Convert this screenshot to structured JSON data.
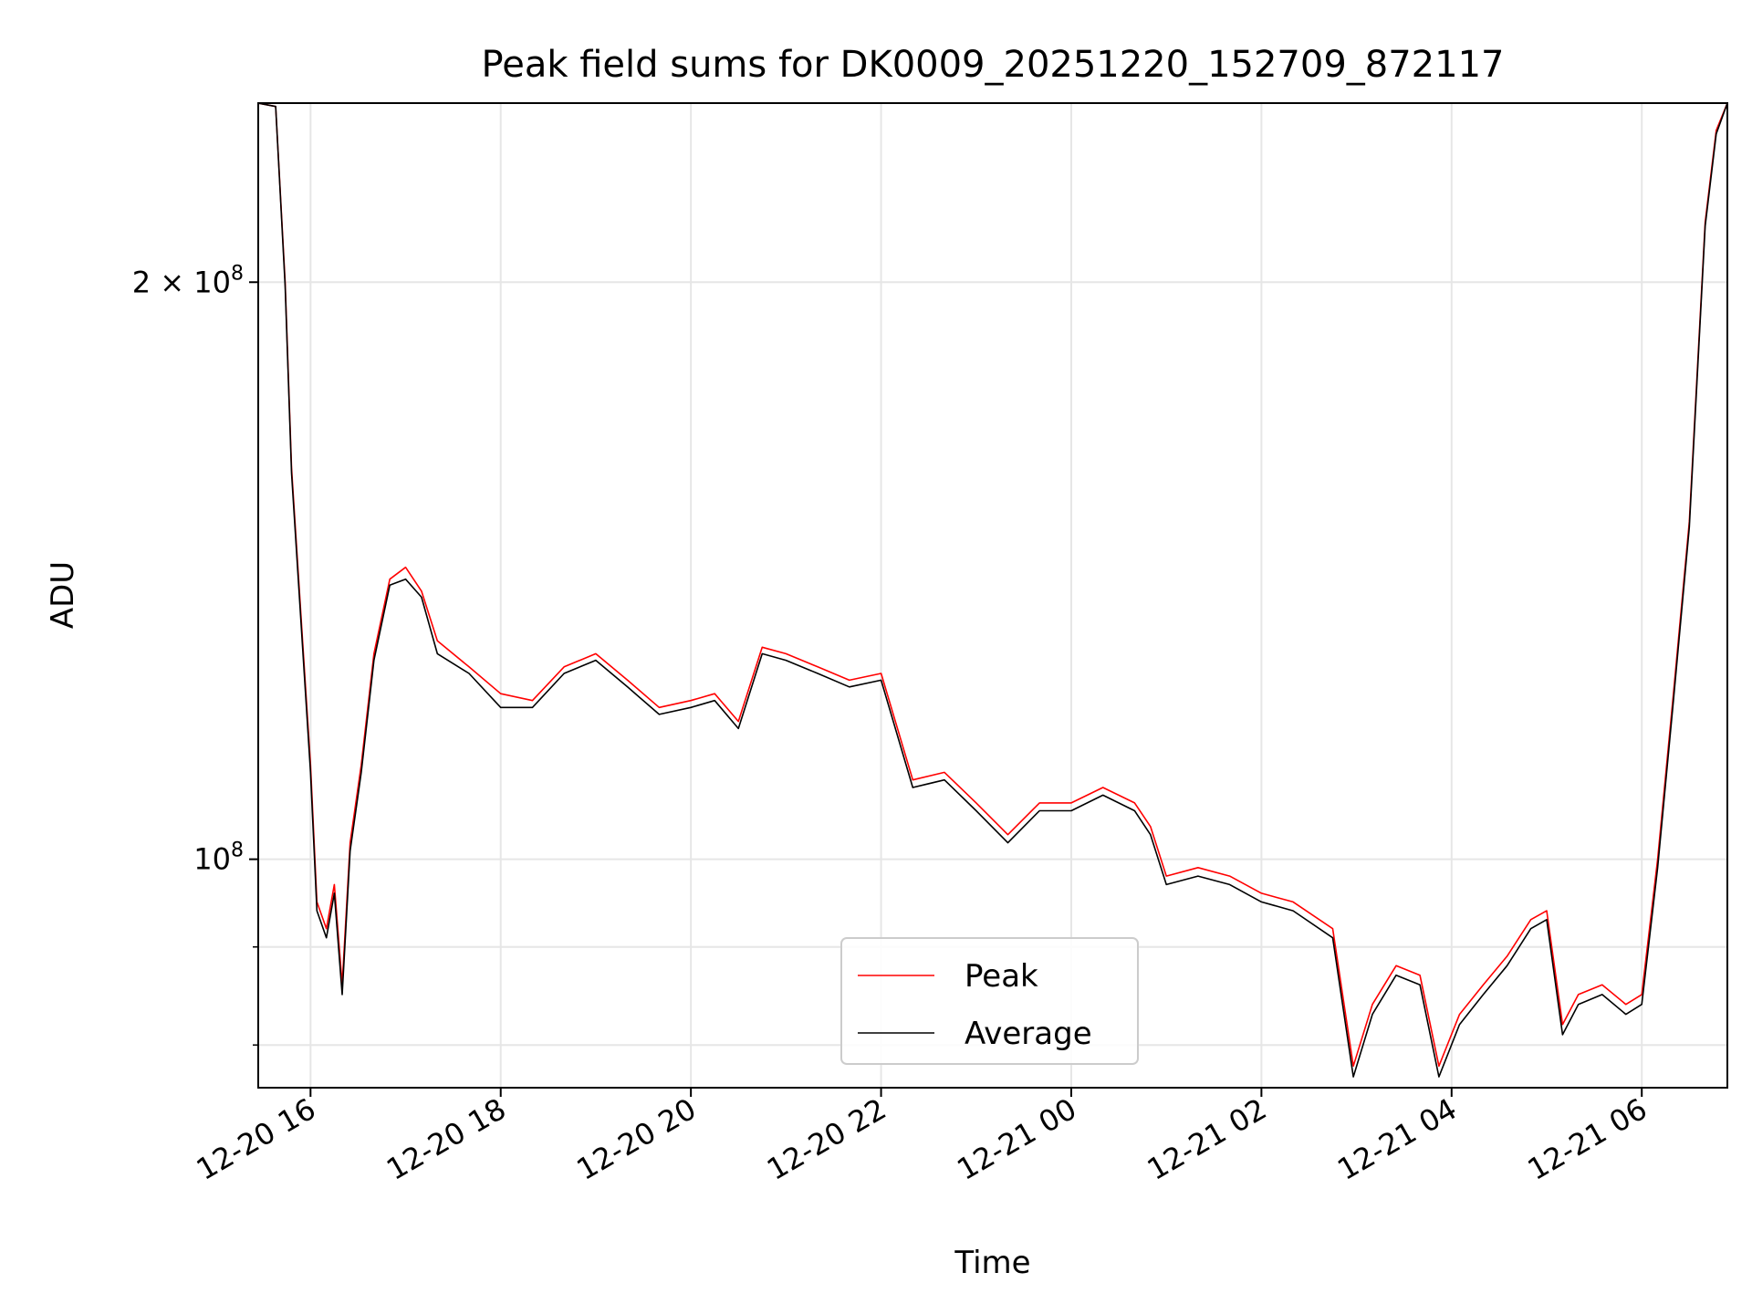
{
  "chart_data": {
    "type": "line",
    "title": "Peak field sums for DK0009_20251220_152709_872117",
    "xlabel": "Time",
    "ylabel": "ADU",
    "yscale": "log",
    "grid": true,
    "legend_position": "lower center",
    "xlim": [
      "2025-12-20 15:27",
      "2025-12-21 06:54"
    ],
    "ylim": [
      76000000,
      248000000
    ],
    "x_ticks": [
      {
        "value": "2025-12-20 16:00",
        "label": "12-20 16"
      },
      {
        "value": "2025-12-20 18:00",
        "label": "12-20 18"
      },
      {
        "value": "2025-12-20 20:00",
        "label": "12-20 20"
      },
      {
        "value": "2025-12-20 22:00",
        "label": "12-20 22"
      },
      {
        "value": "2025-12-21 00:00",
        "label": "12-21 00"
      },
      {
        "value": "2025-12-21 02:00",
        "label": "12-21 02"
      },
      {
        "value": "2025-12-21 04:00",
        "label": "12-21 04"
      },
      {
        "value": "2025-12-21 06:00",
        "label": "12-21 06"
      }
    ],
    "y_ticks": [
      {
        "value": 200000000,
        "label": "2 × 10",
        "exp": "8"
      },
      {
        "value": 100000000,
        "label": "10",
        "exp": "8"
      }
    ],
    "y_minor_ticks": [
      80000000,
      90000000
    ],
    "series": [
      {
        "name": "Peak",
        "color": "#ff0000",
        "x": [
          "2025-12-20 15:27",
          "2025-12-20 15:38",
          "2025-12-20 15:44",
          "2025-12-20 15:48",
          "2025-12-20 15:55",
          "2025-12-20 16:00",
          "2025-12-20 16:04",
          "2025-12-20 16:10",
          "2025-12-20 16:15",
          "2025-12-20 16:20",
          "2025-12-20 16:25",
          "2025-12-20 16:32",
          "2025-12-20 16:40",
          "2025-12-20 16:50",
          "2025-12-20 17:00",
          "2025-12-20 17:10",
          "2025-12-20 17:20",
          "2025-12-20 17:40",
          "2025-12-20 18:00",
          "2025-12-20 18:20",
          "2025-12-20 18:40",
          "2025-12-20 19:00",
          "2025-12-20 19:20",
          "2025-12-20 19:40",
          "2025-12-20 20:00",
          "2025-12-20 20:15",
          "2025-12-20 20:30",
          "2025-12-20 20:45",
          "2025-12-20 21:00",
          "2025-12-20 21:20",
          "2025-12-20 21:40",
          "2025-12-20 22:00",
          "2025-12-20 22:20",
          "2025-12-20 22:40",
          "2025-12-20 23:00",
          "2025-12-20 23:20",
          "2025-12-20 23:40",
          "2025-12-21 00:00",
          "2025-12-21 00:20",
          "2025-12-21 00:40",
          "2025-12-21 00:50",
          "2025-12-21 01:00",
          "2025-12-21 01:20",
          "2025-12-21 01:40",
          "2025-12-21 02:00",
          "2025-12-21 02:20",
          "2025-12-21 02:45",
          "2025-12-21 02:58",
          "2025-12-21 03:10",
          "2025-12-21 03:25",
          "2025-12-21 03:40",
          "2025-12-21 03:52",
          "2025-12-21 04:05",
          "2025-12-21 04:20",
          "2025-12-21 04:35",
          "2025-12-21 04:50",
          "2025-12-21 05:00",
          "2025-12-21 05:10",
          "2025-12-21 05:20",
          "2025-12-21 05:35",
          "2025-12-21 05:50",
          "2025-12-21 06:00",
          "2025-12-21 06:10",
          "2025-12-21 06:20",
          "2025-12-21 06:30",
          "2025-12-21 06:40",
          "2025-12-21 06:47",
          "2025-12-21 06:54"
        ],
        "values": [
          248000000,
          247000000,
          200000000,
          160000000,
          130000000,
          112000000,
          95000000,
          92000000,
          97000000,
          86000000,
          102000000,
          112000000,
          128000000,
          140000000,
          142000000,
          138000000,
          130000000,
          126000000,
          122000000,
          121000000,
          126000000,
          128000000,
          124000000,
          120000000,
          121000000,
          122000000,
          118000000,
          129000000,
          128000000,
          126000000,
          124000000,
          125000000,
          110000000,
          111000000,
          107000000,
          103000000,
          107000000,
          107000000,
          109000000,
          107000000,
          104000000,
          98000000,
          99000000,
          98000000,
          96000000,
          95000000,
          92000000,
          78000000,
          84000000,
          88000000,
          87000000,
          78000000,
          83000000,
          86000000,
          89000000,
          93000000,
          94000000,
          82000000,
          85000000,
          86000000,
          84000000,
          85000000,
          100000000,
          122000000,
          150000000,
          215000000,
          240000000,
          248000000
        ]
      },
      {
        "name": "Average",
        "color": "#000000",
        "x": [
          "2025-12-20 15:27",
          "2025-12-20 15:38",
          "2025-12-20 15:44",
          "2025-12-20 15:48",
          "2025-12-20 15:55",
          "2025-12-20 16:00",
          "2025-12-20 16:04",
          "2025-12-20 16:10",
          "2025-12-20 16:15",
          "2025-12-20 16:20",
          "2025-12-20 16:25",
          "2025-12-20 16:32",
          "2025-12-20 16:40",
          "2025-12-20 16:50",
          "2025-12-20 17:00",
          "2025-12-20 17:10",
          "2025-12-20 17:20",
          "2025-12-20 17:40",
          "2025-12-20 18:00",
          "2025-12-20 18:20",
          "2025-12-20 18:40",
          "2025-12-20 19:00",
          "2025-12-20 19:20",
          "2025-12-20 19:40",
          "2025-12-20 20:00",
          "2025-12-20 20:15",
          "2025-12-20 20:30",
          "2025-12-20 20:45",
          "2025-12-20 21:00",
          "2025-12-20 21:20",
          "2025-12-20 21:40",
          "2025-12-20 22:00",
          "2025-12-20 22:20",
          "2025-12-20 22:40",
          "2025-12-20 23:00",
          "2025-12-20 23:20",
          "2025-12-20 23:40",
          "2025-12-21 00:00",
          "2025-12-21 00:20",
          "2025-12-21 00:40",
          "2025-12-21 00:50",
          "2025-12-21 01:00",
          "2025-12-21 01:20",
          "2025-12-21 01:40",
          "2025-12-21 02:00",
          "2025-12-21 02:20",
          "2025-12-21 02:45",
          "2025-12-21 02:58",
          "2025-12-21 03:10",
          "2025-12-21 03:25",
          "2025-12-21 03:40",
          "2025-12-21 03:52",
          "2025-12-21 04:05",
          "2025-12-21 04:20",
          "2025-12-21 04:35",
          "2025-12-21 04:50",
          "2025-12-21 05:00",
          "2025-12-21 05:10",
          "2025-12-21 05:20",
          "2025-12-21 05:35",
          "2025-12-21 05:50",
          "2025-12-21 06:00",
          "2025-12-21 06:10",
          "2025-12-21 06:20",
          "2025-12-21 06:30",
          "2025-12-21 06:40",
          "2025-12-21 06:47",
          "2025-12-21 06:54"
        ],
        "values": [
          248000000,
          247000000,
          199000000,
          159000000,
          129000000,
          111000000,
          94000000,
          91000000,
          96000000,
          85000000,
          101000000,
          111000000,
          127000000,
          139000000,
          140000000,
          137000000,
          128000000,
          125000000,
          120000000,
          120000000,
          125000000,
          127000000,
          123000000,
          119000000,
          120000000,
          121000000,
          117000000,
          128000000,
          127000000,
          125000000,
          123000000,
          124000000,
          109000000,
          110000000,
          106000000,
          102000000,
          106000000,
          106000000,
          108000000,
          106000000,
          103000000,
          97000000,
          98000000,
          97000000,
          95000000,
          94000000,
          91000000,
          77000000,
          83000000,
          87000000,
          86000000,
          77000000,
          82000000,
          85000000,
          88000000,
          92000000,
          93000000,
          81000000,
          84000000,
          85000000,
          83000000,
          84000000,
          99000000,
          121000000,
          149000000,
          214000000,
          239000000,
          248000000
        ]
      }
    ]
  }
}
